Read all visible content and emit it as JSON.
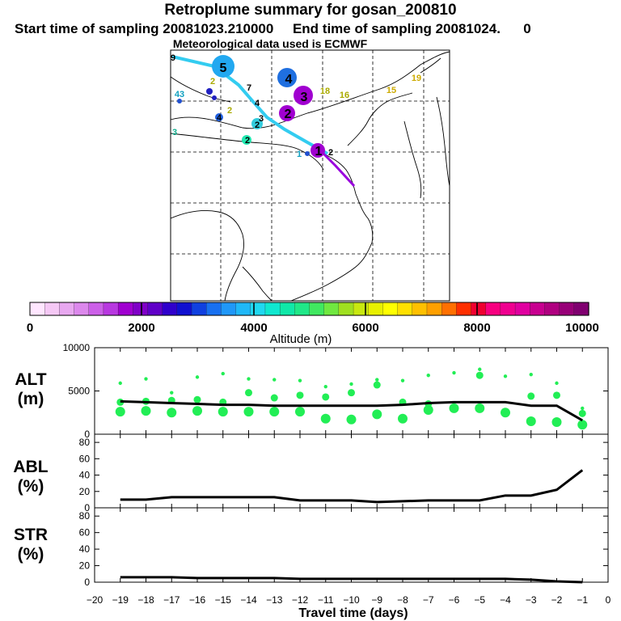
{
  "header": {
    "title": "Retroplume summary for gosan_200810",
    "subtitle": "Start time of sampling 20081023.210000     End time of sampling 20081024.      0",
    "met_line": "Meteorological data used is ECMWF"
  },
  "map": {
    "plume_numbers": [
      {
        "label": "5",
        "color": "#00aaff"
      },
      {
        "label": "4",
        "color": "#1f6fe0"
      },
      {
        "label": "3",
        "color": "#a000d0"
      },
      {
        "label": "2",
        "color": "#a000d0"
      },
      {
        "label": "1",
        "color": "#a000d0"
      }
    ],
    "small_labels": [
      "9",
      "2",
      "7",
      "4",
      "43",
      "4",
      "2",
      "3",
      "3",
      "2",
      "2",
      "1",
      "18",
      "16",
      "15",
      "19",
      "2"
    ]
  },
  "colorbar": {
    "xlabel": "Altitude (m)",
    "ticks": [
      "0",
      "2000",
      "4000",
      "6000",
      "8000",
      "10000"
    ],
    "colors": [
      "#ffe6ff",
      "#f5c8f5",
      "#e8a8f0",
      "#dc88ec",
      "#cc60e8",
      "#b838e0",
      "#a000d0",
      "#8000c8",
      "#6000c8",
      "#3000cc",
      "#1010d0",
      "#1040e0",
      "#1870f0",
      "#2098f8",
      "#20b8f8",
      "#20d8f0",
      "#10e8d0",
      "#10e8a8",
      "#20e888",
      "#40e860",
      "#70e840",
      "#a0e020",
      "#c8e810",
      "#e8f000",
      "#ffff00",
      "#ffe000",
      "#ffc000",
      "#ffa000",
      "#ff7000",
      "#ff3000",
      "#f00030",
      "#f80080",
      "#f00090",
      "#e000a0",
      "#c80090",
      "#b00080",
      "#980078",
      "#800070"
    ]
  },
  "panels": {
    "alt": {
      "label_line1": "ALT",
      "label_line2": "(m)"
    },
    "abl": {
      "label_line1": "ABL",
      "label_line2": "(%)"
    },
    "str": {
      "label_line1": "STR",
      "label_line2": "(%)"
    },
    "xlabel": "Travel time (days)"
  },
  "chart_data": [
    {
      "type": "line",
      "title": "ALT (m)",
      "ylabel": "ALT (m)",
      "xlabel": "Travel time (days)",
      "xlim": [
        -20,
        0
      ],
      "ylim": [
        0,
        10000
      ],
      "yticks": [
        0,
        5000,
        10000
      ],
      "ytick_labels": [
        "0",
        "5000",
        "10000"
      ],
      "x": [
        -19,
        -18,
        -17,
        -16,
        -15,
        -14,
        -13,
        -12,
        -11,
        -10,
        -9,
        -8,
        -7,
        -6,
        -5,
        -4,
        -3,
        -2,
        -1
      ],
      "series": [
        {
          "name": "mean altitude",
          "color": "#000000",
          "values": [
            3800,
            3700,
            3600,
            3500,
            3400,
            3400,
            3300,
            3300,
            3300,
            3300,
            3300,
            3400,
            3600,
            3700,
            3700,
            3700,
            3300,
            3300,
            1600
          ]
        }
      ],
      "dot_color": "#22ee55",
      "dots": [
        {
          "x": -19,
          "y": [
            5900,
            3700,
            2600
          ]
        },
        {
          "x": -18,
          "y": [
            6400,
            3800,
            2700
          ]
        },
        {
          "x": -17,
          "y": [
            4800,
            3900,
            2500
          ]
        },
        {
          "x": -16,
          "y": [
            6600,
            4000,
            2700
          ]
        },
        {
          "x": -15,
          "y": [
            7000,
            3700,
            2600
          ]
        },
        {
          "x": -14,
          "y": [
            6400,
            4800,
            2600
          ]
        },
        {
          "x": -13,
          "y": [
            6300,
            4200,
            2600
          ]
        },
        {
          "x": -12,
          "y": [
            6200,
            4500,
            2600
          ]
        },
        {
          "x": -11,
          "y": [
            5500,
            4300,
            1800
          ]
        },
        {
          "x": -10,
          "y": [
            5800,
            4800,
            1700
          ]
        },
        {
          "x": -9,
          "y": [
            6300,
            5700,
            2300
          ]
        },
        {
          "x": -8,
          "y": [
            6200,
            3700,
            1800
          ]
        },
        {
          "x": -7,
          "y": [
            6800,
            3500,
            2800
          ]
        },
        {
          "x": -6,
          "y": [
            7100,
            3000
          ]
        },
        {
          "x": -5,
          "y": [
            7500,
            6800,
            3000
          ]
        },
        {
          "x": -4,
          "y": [
            6700,
            2500
          ]
        },
        {
          "x": -3,
          "y": [
            6900,
            4400,
            1500
          ]
        },
        {
          "x": -2,
          "y": [
            5900,
            4500,
            1400
          ]
        },
        {
          "x": -1,
          "y": [
            3000,
            2400,
            1100
          ]
        }
      ]
    },
    {
      "type": "line",
      "title": "ABL (%)",
      "ylabel": "ABL (%)",
      "xlim": [
        -20,
        0
      ],
      "ylim": [
        0,
        90
      ],
      "yticks": [
        0,
        20,
        40,
        60,
        80
      ],
      "ytick_labels": [
        "0",
        "20",
        "40",
        "60",
        "80"
      ],
      "x": [
        -19,
        -18,
        -17,
        -16,
        -15,
        -14,
        -13,
        -12,
        -11,
        -10,
        -9,
        -8,
        -7,
        -6,
        -5,
        -4,
        -3,
        -2,
        -1
      ],
      "series": [
        {
          "name": "ABL",
          "color": "#000000",
          "values": [
            10,
            10,
            13,
            13,
            13,
            13,
            13,
            9,
            9,
            9,
            7,
            8,
            9,
            9,
            9,
            15,
            15,
            22,
            46
          ]
        }
      ]
    },
    {
      "type": "line",
      "title": "STR (%)",
      "ylabel": "STR (%)",
      "xlabel": "Travel time (days)",
      "xlim": [
        -20,
        0
      ],
      "ylim": [
        0,
        90
      ],
      "yticks": [
        0,
        20,
        40,
        60,
        80
      ],
      "ytick_labels": [
        "0",
        "20",
        "40",
        "60",
        "80"
      ],
      "xticks": [
        -20,
        -19,
        -18,
        -17,
        -16,
        -15,
        -14,
        -13,
        -12,
        -11,
        -10,
        -9,
        -8,
        -7,
        -6,
        -5,
        -4,
        -3,
        -2,
        -1,
        0
      ],
      "xtick_labels": [
        "−20",
        "−19",
        "−18",
        "−17",
        "−16",
        "−15",
        "−14",
        "−13",
        "−12",
        "−11",
        "−10",
        "−9",
        "−8",
        "−7",
        "−6",
        "−5",
        "−4",
        "−3",
        "−2",
        "−1",
        "0"
      ],
      "x": [
        -19,
        -18,
        -17,
        -16,
        -15,
        -14,
        -13,
        -12,
        -11,
        -10,
        -9,
        -8,
        -7,
        -6,
        -5,
        -4,
        -3,
        -2,
        -1
      ],
      "series": [
        {
          "name": "STR",
          "color": "#000000",
          "values": [
            6,
            6,
            6,
            5,
            5,
            5,
            5,
            4,
            4,
            4,
            4,
            4,
            4,
            4,
            4,
            4,
            3,
            1,
            0
          ]
        }
      ]
    }
  ]
}
